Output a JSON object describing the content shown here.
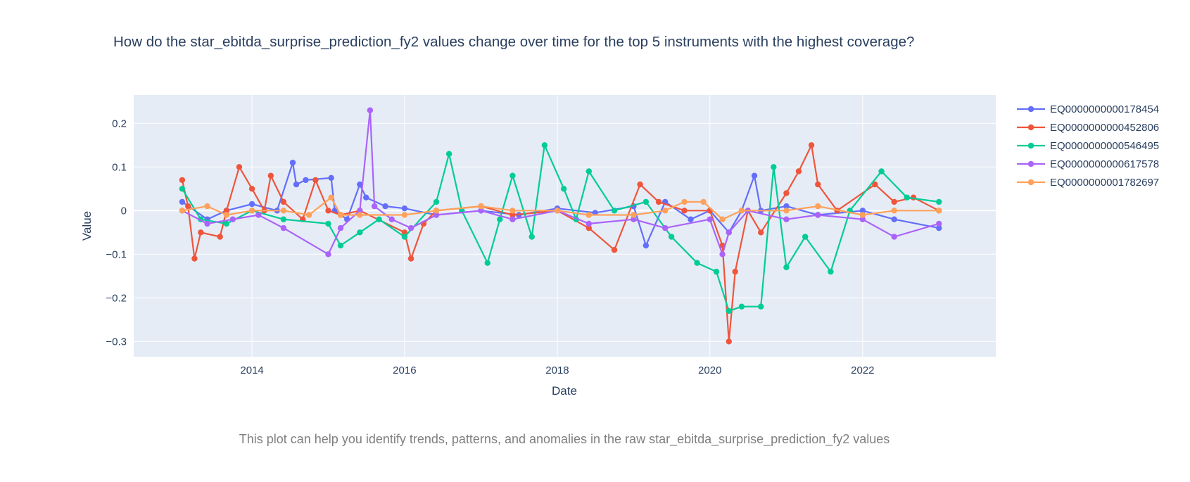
{
  "chart_data": {
    "type": "line",
    "title": "How do the star_ebitda_surprise_prediction_fy2 values change over time for the top 5 instruments with the highest coverage?",
    "caption": "This plot can help you identify trends, patterns, and anomalies in the raw star_ebitda_surprise_prediction_fy2 values",
    "xlabel": "Date",
    "ylabel": "Value",
    "x_ticks": [
      "2014",
      "2016",
      "2018",
      "2020",
      "2022"
    ],
    "y_ticks": [
      "0.2",
      "0.1",
      "0",
      "−0.1",
      "−0.2",
      "−0.3"
    ],
    "y_tick_values": [
      0.2,
      0.1,
      0,
      -0.1,
      -0.2,
      -0.3
    ],
    "xlim": [
      "2012-06-14",
      "2023-09-30"
    ],
    "ylim": [
      -0.335,
      0.265
    ],
    "grid": true,
    "legend_position": "right",
    "plot_background": "#e5ecf6",
    "series": [
      {
        "name": "EQ0000000000178454",
        "color": "#636efa",
        "points": [
          [
            "2013-02-01",
            0.02
          ],
          [
            "2013-06-01",
            -0.02
          ],
          [
            "2013-09-01",
            0.0
          ],
          [
            "2014-01-01",
            0.015
          ],
          [
            "2014-05-01",
            0.0
          ],
          [
            "2014-07-15",
            0.11
          ],
          [
            "2014-08-01",
            0.06
          ],
          [
            "2014-09-15",
            0.07
          ],
          [
            "2015-01-15",
            0.075
          ],
          [
            "2015-02-01",
            0.0
          ],
          [
            "2015-04-01",
            -0.02
          ],
          [
            "2015-06-01",
            0.06
          ],
          [
            "2015-07-01",
            0.03
          ],
          [
            "2015-10-01",
            0.01
          ],
          [
            "2016-01-01",
            0.005
          ],
          [
            "2016-06-01",
            -0.01
          ],
          [
            "2017-01-01",
            0.0
          ],
          [
            "2017-07-01",
            -0.01
          ],
          [
            "2018-01-01",
            0.005
          ],
          [
            "2018-07-01",
            -0.005
          ],
          [
            "2019-01-01",
            0.01
          ],
          [
            "2019-03-01",
            -0.08
          ],
          [
            "2019-06-01",
            0.02
          ],
          [
            "2019-10-01",
            -0.02
          ],
          [
            "2020-01-01",
            0.0
          ],
          [
            "2020-04-01",
            -0.05
          ],
          [
            "2020-06-01",
            0.0
          ],
          [
            "2020-08-01",
            0.08
          ],
          [
            "2020-09-01",
            0.0
          ],
          [
            "2021-01-01",
            0.01
          ],
          [
            "2021-06-01",
            -0.01
          ],
          [
            "2022-01-01",
            0.0
          ],
          [
            "2022-06-01",
            -0.02
          ],
          [
            "2023-01-01",
            -0.04
          ]
        ]
      },
      {
        "name": "EQ0000000000452806",
        "color": "#ef553b",
        "points": [
          [
            "2013-02-01",
            0.07
          ],
          [
            "2013-03-01",
            0.01
          ],
          [
            "2013-04-01",
            -0.11
          ],
          [
            "2013-05-01",
            -0.05
          ],
          [
            "2013-08-01",
            -0.06
          ],
          [
            "2013-09-01",
            0.0
          ],
          [
            "2013-11-01",
            0.1
          ],
          [
            "2014-01-01",
            0.05
          ],
          [
            "2014-03-01",
            0.0
          ],
          [
            "2014-04-01",
            0.08
          ],
          [
            "2014-06-01",
            0.02
          ],
          [
            "2014-09-01",
            -0.02
          ],
          [
            "2014-11-01",
            0.07
          ],
          [
            "2015-01-01",
            0.0
          ],
          [
            "2015-03-01",
            -0.01
          ],
          [
            "2015-06-01",
            0.0
          ],
          [
            "2016-01-01",
            -0.05
          ],
          [
            "2016-02-01",
            -0.11
          ],
          [
            "2016-04-01",
            -0.03
          ],
          [
            "2016-06-01",
            0.0
          ],
          [
            "2017-01-01",
            0.01
          ],
          [
            "2017-06-01",
            -0.01
          ],
          [
            "2018-01-01",
            0.0
          ],
          [
            "2018-06-01",
            -0.04
          ],
          [
            "2018-10-01",
            -0.09
          ],
          [
            "2019-02-01",
            0.06
          ],
          [
            "2019-05-01",
            0.02
          ],
          [
            "2019-09-01",
            0.0
          ],
          [
            "2020-01-01",
            0.0
          ],
          [
            "2020-03-01",
            -0.08
          ],
          [
            "2020-04-01",
            -0.3
          ],
          [
            "2020-05-01",
            -0.14
          ],
          [
            "2020-07-01",
            0.0
          ],
          [
            "2020-09-01",
            -0.05
          ],
          [
            "2021-01-01",
            0.04
          ],
          [
            "2021-03-01",
            0.09
          ],
          [
            "2021-05-01",
            0.15
          ],
          [
            "2021-06-01",
            0.06
          ],
          [
            "2021-09-01",
            0.0
          ],
          [
            "2022-03-01",
            0.06
          ],
          [
            "2022-06-01",
            0.02
          ],
          [
            "2022-09-01",
            0.03
          ],
          [
            "2023-01-01",
            0.0
          ]
        ]
      },
      {
        "name": "EQ0000000000546495",
        "color": "#00cc96",
        "points": [
          [
            "2013-02-01",
            0.05
          ],
          [
            "2013-05-01",
            -0.02
          ],
          [
            "2013-09-01",
            -0.03
          ],
          [
            "2014-01-01",
            0.0
          ],
          [
            "2014-06-01",
            -0.02
          ],
          [
            "2015-01-01",
            -0.03
          ],
          [
            "2015-03-01",
            -0.08
          ],
          [
            "2015-06-01",
            -0.05
          ],
          [
            "2015-09-01",
            -0.02
          ],
          [
            "2016-01-01",
            -0.06
          ],
          [
            "2016-06-01",
            0.02
          ],
          [
            "2016-08-01",
            0.13
          ],
          [
            "2016-10-01",
            0.0
          ],
          [
            "2017-02-01",
            -0.12
          ],
          [
            "2017-04-01",
            -0.02
          ],
          [
            "2017-06-01",
            0.08
          ],
          [
            "2017-09-01",
            -0.06
          ],
          [
            "2017-11-01",
            0.15
          ],
          [
            "2018-02-01",
            0.05
          ],
          [
            "2018-04-01",
            -0.02
          ],
          [
            "2018-06-01",
            0.09
          ],
          [
            "2018-10-01",
            0.0
          ],
          [
            "2019-03-01",
            0.02
          ],
          [
            "2019-07-01",
            -0.06
          ],
          [
            "2019-11-01",
            -0.12
          ],
          [
            "2020-02-01",
            -0.14
          ],
          [
            "2020-04-01",
            -0.23
          ],
          [
            "2020-06-01",
            -0.22
          ],
          [
            "2020-09-01",
            -0.22
          ],
          [
            "2020-11-01",
            0.1
          ],
          [
            "2021-01-01",
            -0.13
          ],
          [
            "2021-04-01",
            -0.06
          ],
          [
            "2021-08-01",
            -0.14
          ],
          [
            "2021-11-01",
            0.0
          ],
          [
            "2022-04-01",
            0.09
          ],
          [
            "2022-08-01",
            0.03
          ],
          [
            "2023-01-01",
            0.02
          ]
        ]
      },
      {
        "name": "EQ0000000000617578",
        "color": "#ab63fa",
        "points": [
          [
            "2013-02-01",
            0.0
          ],
          [
            "2013-06-01",
            -0.03
          ],
          [
            "2013-10-01",
            -0.02
          ],
          [
            "2014-02-01",
            -0.01
          ],
          [
            "2014-06-01",
            -0.04
          ],
          [
            "2015-01-01",
            -0.1
          ],
          [
            "2015-03-01",
            -0.04
          ],
          [
            "2015-06-01",
            0.0
          ],
          [
            "2015-07-20",
            0.23
          ],
          [
            "2015-08-10",
            0.01
          ],
          [
            "2015-11-01",
            -0.02
          ],
          [
            "2016-02-01",
            -0.04
          ],
          [
            "2016-06-01",
            -0.01
          ],
          [
            "2017-01-01",
            0.0
          ],
          [
            "2017-06-01",
            -0.02
          ],
          [
            "2018-01-01",
            0.0
          ],
          [
            "2018-06-01",
            -0.03
          ],
          [
            "2019-01-01",
            -0.02
          ],
          [
            "2019-06-01",
            -0.04
          ],
          [
            "2020-01-01",
            -0.02
          ],
          [
            "2020-03-01",
            -0.1
          ],
          [
            "2020-04-01",
            -0.05
          ],
          [
            "2020-07-01",
            0.0
          ],
          [
            "2021-01-01",
            -0.02
          ],
          [
            "2021-06-01",
            -0.01
          ],
          [
            "2022-01-01",
            -0.02
          ],
          [
            "2022-06-01",
            -0.06
          ],
          [
            "2023-01-01",
            -0.03
          ]
        ]
      },
      {
        "name": "EQ0000000001782697",
        "color": "#ffa15a",
        "points": [
          [
            "2013-02-01",
            0.0
          ],
          [
            "2013-06-01",
            0.01
          ],
          [
            "2013-09-01",
            -0.01
          ],
          [
            "2014-01-01",
            0.0
          ],
          [
            "2014-06-01",
            0.0
          ],
          [
            "2014-10-01",
            -0.01
          ],
          [
            "2015-01-15",
            0.03
          ],
          [
            "2015-03-01",
            -0.01
          ],
          [
            "2015-06-01",
            -0.01
          ],
          [
            "2016-01-01",
            -0.01
          ],
          [
            "2016-06-01",
            0.0
          ],
          [
            "2017-01-01",
            0.01
          ],
          [
            "2017-06-01",
            0.0
          ],
          [
            "2018-01-01",
            0.0
          ],
          [
            "2018-06-01",
            -0.01
          ],
          [
            "2019-01-01",
            -0.01
          ],
          [
            "2019-06-01",
            0.0
          ],
          [
            "2019-09-01",
            0.02
          ],
          [
            "2019-12-01",
            0.02
          ],
          [
            "2020-03-01",
            -0.02
          ],
          [
            "2020-06-01",
            0.0
          ],
          [
            "2021-01-01",
            0.0
          ],
          [
            "2021-06-01",
            0.01
          ],
          [
            "2022-01-01",
            -0.01
          ],
          [
            "2022-06-01",
            0.0
          ],
          [
            "2023-01-01",
            0.0
          ]
        ]
      }
    ]
  }
}
